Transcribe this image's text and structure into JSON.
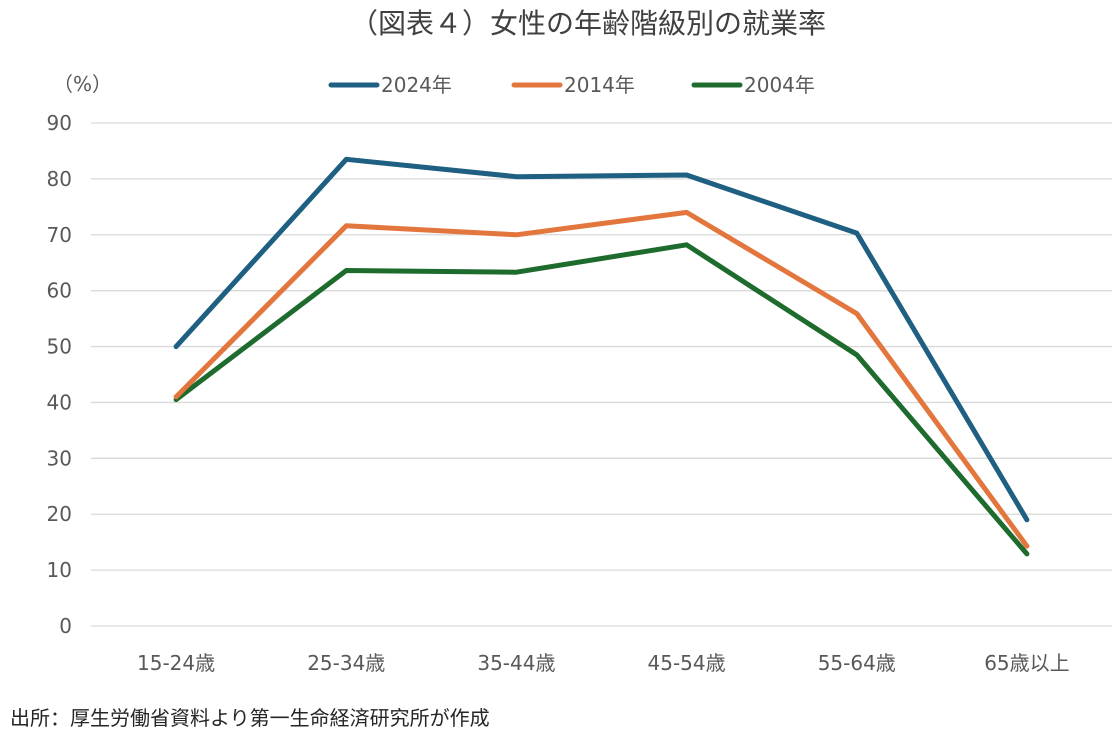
{
  "chart_data": {
    "type": "line",
    "title": "（図表４）女性の年齢階級別の就業率",
    "ylabel": "（%）",
    "xlabel": "",
    "categories": [
      "15-24歳",
      "25-34歳",
      "35-44歳",
      "45-54歳",
      "55-64歳",
      "65歳以上"
    ],
    "ylim": [
      0,
      90
    ],
    "yticks": [
      0,
      10,
      20,
      30,
      40,
      50,
      60,
      70,
      80,
      90
    ],
    "grid": true,
    "legend_position": "top",
    "series": [
      {
        "name": "2024年",
        "color": "#1f5f82",
        "values": [
          50.0,
          83.5,
          80.4,
          80.7,
          70.3,
          19.0
        ]
      },
      {
        "name": "2014年",
        "color": "#e2763d",
        "values": [
          41.0,
          71.6,
          70.0,
          74.0,
          55.9,
          14.3
        ]
      },
      {
        "name": "2004年",
        "color": "#1e6b2e",
        "values": [
          40.5,
          63.6,
          63.3,
          68.2,
          48.5,
          12.9
        ]
      }
    ]
  },
  "source_note": "出所：厚生労働省資料より第一生命経済研究所が作成"
}
